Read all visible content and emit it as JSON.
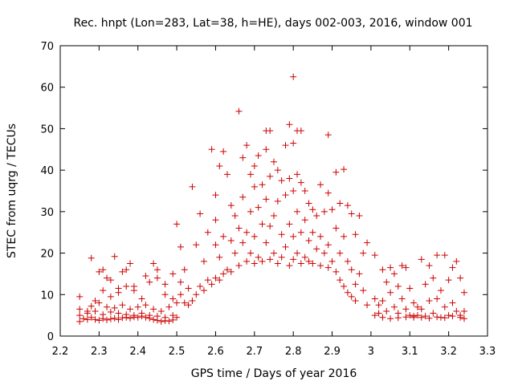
{
  "chart_data": {
    "type": "scatter",
    "title": "Rec. hnpt (Lon=283, Lat=38, h=HE), days 002-003, 2016, window 001",
    "xlabel": "GPS time / Days of year 2016",
    "ylabel": "STEC from uqrg / TECUs",
    "xlim": [
      2.2,
      3.3
    ],
    "ylim": [
      0,
      70
    ],
    "xticks": [
      "2.2",
      "2.3",
      "2.4",
      "2.5",
      "2.6",
      "2.7",
      "2.8",
      "2.9",
      "3",
      "3.1",
      "3.2",
      "3.3"
    ],
    "yticks": [
      "0",
      "10",
      "20",
      "30",
      "40",
      "50",
      "60",
      "70"
    ],
    "marker": "+",
    "color": "#cc0000",
    "grid": false,
    "series": [
      {
        "name": "STEC",
        "points": [
          [
            2.25,
            3.5
          ],
          [
            2.26,
            4.2
          ],
          [
            2.27,
            4.0
          ],
          [
            2.28,
            4.5
          ],
          [
            2.29,
            4.0
          ],
          [
            2.3,
            3.8
          ],
          [
            2.31,
            4.2
          ],
          [
            2.32,
            3.9
          ],
          [
            2.33,
            4.1
          ],
          [
            2.34,
            4.3
          ],
          [
            2.35,
            4.0
          ],
          [
            2.36,
            4.4
          ],
          [
            2.37,
            4.5
          ],
          [
            2.38,
            4.3
          ],
          [
            2.39,
            4.6
          ],
          [
            2.4,
            4.5
          ],
          [
            2.41,
            4.8
          ],
          [
            2.42,
            4.5
          ],
          [
            2.43,
            4.3
          ],
          [
            2.44,
            4.0
          ],
          [
            2.45,
            3.8
          ],
          [
            2.46,
            3.5
          ],
          [
            2.47,
            3.7
          ],
          [
            2.48,
            3.6
          ],
          [
            2.49,
            3.9
          ],
          [
            2.5,
            4.5
          ],
          [
            2.25,
            5.0
          ],
          [
            2.27,
            5.5
          ],
          [
            2.29,
            6.0
          ],
          [
            2.31,
            5.2
          ],
          [
            2.33,
            5.8
          ],
          [
            2.35,
            5.5
          ],
          [
            2.37,
            5.2
          ],
          [
            2.39,
            5.0
          ],
          [
            2.41,
            5.5
          ],
          [
            2.43,
            5.0
          ],
          [
            2.45,
            4.8
          ],
          [
            2.47,
            4.5
          ],
          [
            2.49,
            5.0
          ],
          [
            2.25,
            6.5
          ],
          [
            2.28,
            7.2
          ],
          [
            2.3,
            8.0
          ],
          [
            2.32,
            7.0
          ],
          [
            2.34,
            6.8
          ],
          [
            2.36,
            7.5
          ],
          [
            2.38,
            6.5
          ],
          [
            2.4,
            7.0
          ],
          [
            2.42,
            7.5
          ],
          [
            2.44,
            6.5
          ],
          [
            2.46,
            6.0
          ],
          [
            2.48,
            7.0
          ],
          [
            2.5,
            8.0
          ],
          [
            2.25,
            9.5
          ],
          [
            2.27,
            6.0
          ],
          [
            2.29,
            8.5
          ],
          [
            2.31,
            11.0
          ],
          [
            2.33,
            9.5
          ],
          [
            2.35,
            10.5
          ],
          [
            2.37,
            12.0
          ],
          [
            2.39,
            11.0
          ],
          [
            2.41,
            9.0
          ],
          [
            2.43,
            13.0
          ],
          [
            2.45,
            14.0
          ],
          [
            2.47,
            10.0
          ],
          [
            2.49,
            9.0
          ],
          [
            2.28,
            18.8
          ],
          [
            2.3,
            15.5
          ],
          [
            2.31,
            16.0
          ],
          [
            2.32,
            14.0
          ],
          [
            2.33,
            13.5
          ],
          [
            2.34,
            19.2
          ],
          [
            2.35,
            11.5
          ],
          [
            2.36,
            15.5
          ],
          [
            2.37,
            16.0
          ],
          [
            2.38,
            17.5
          ],
          [
            2.39,
            12.0
          ],
          [
            2.42,
            14.5
          ],
          [
            2.44,
            17.5
          ],
          [
            2.45,
            16.0
          ],
          [
            2.47,
            12.5
          ],
          [
            2.49,
            15.0
          ],
          [
            2.5,
            27.0
          ],
          [
            2.51,
            21.5
          ],
          [
            2.51,
            13.0
          ],
          [
            2.51,
            10.0
          ],
          [
            2.52,
            8.0
          ],
          [
            2.52,
            16.0
          ],
          [
            2.53,
            7.5
          ],
          [
            2.53,
            11.5
          ],
          [
            2.54,
            36.0
          ],
          [
            2.54,
            8.5
          ],
          [
            2.55,
            22.0
          ],
          [
            2.55,
            10.0
          ],
          [
            2.56,
            29.5
          ],
          [
            2.56,
            12.0
          ],
          [
            2.57,
            18.0
          ],
          [
            2.57,
            11.0
          ],
          [
            2.58,
            25.0
          ],
          [
            2.58,
            13.5
          ],
          [
            2.59,
            45.0
          ],
          [
            2.59,
            12.5
          ],
          [
            2.6,
            34.0
          ],
          [
            2.6,
            28.0
          ],
          [
            2.6,
            22.0
          ],
          [
            2.6,
            14.0
          ],
          [
            2.61,
            41.0
          ],
          [
            2.61,
            19.0
          ],
          [
            2.61,
            13.5
          ],
          [
            2.62,
            44.5
          ],
          [
            2.62,
            24.0
          ],
          [
            2.62,
            15.0
          ],
          [
            2.63,
            39.0
          ],
          [
            2.63,
            16.0
          ],
          [
            2.64,
            31.5
          ],
          [
            2.64,
            23.0
          ],
          [
            2.64,
            15.5
          ],
          [
            2.65,
            29.0
          ],
          [
            2.65,
            20.0
          ],
          [
            2.66,
            54.2
          ],
          [
            2.66,
            26.0
          ],
          [
            2.66,
            17.0
          ],
          [
            2.67,
            43.0
          ],
          [
            2.67,
            33.5
          ],
          [
            2.67,
            22.5
          ],
          [
            2.68,
            46.0
          ],
          [
            2.68,
            25.0
          ],
          [
            2.68,
            18.0
          ],
          [
            2.69,
            39.0
          ],
          [
            2.69,
            30.0
          ],
          [
            2.69,
            20.0
          ],
          [
            2.7,
            41.0
          ],
          [
            2.7,
            36.0
          ],
          [
            2.7,
            24.0
          ],
          [
            2.7,
            17.5
          ],
          [
            2.71,
            43.5
          ],
          [
            2.71,
            31.0
          ],
          [
            2.71,
            19.0
          ],
          [
            2.72,
            36.5
          ],
          [
            2.72,
            27.0
          ],
          [
            2.72,
            18.0
          ],
          [
            2.73,
            49.5
          ],
          [
            2.73,
            45.0
          ],
          [
            2.73,
            33.0
          ],
          [
            2.73,
            22.5
          ],
          [
            2.74,
            49.5
          ],
          [
            2.74,
            38.5
          ],
          [
            2.74,
            26.5
          ],
          [
            2.74,
            18.5
          ],
          [
            2.75,
            42.0
          ],
          [
            2.75,
            29.0
          ],
          [
            2.75,
            20.0
          ],
          [
            2.76,
            40.0
          ],
          [
            2.76,
            32.5
          ],
          [
            2.76,
            17.5
          ],
          [
            2.77,
            37.5
          ],
          [
            2.77,
            24.5
          ],
          [
            2.77,
            19.0
          ],
          [
            2.78,
            46.0
          ],
          [
            2.78,
            34.0
          ],
          [
            2.78,
            21.5
          ],
          [
            2.79,
            51.0
          ],
          [
            2.79,
            38.0
          ],
          [
            2.79,
            27.0
          ],
          [
            2.79,
            17.0
          ],
          [
            2.8,
            62.5
          ],
          [
            2.8,
            46.5
          ],
          [
            2.8,
            35.0
          ],
          [
            2.8,
            24.0
          ],
          [
            2.8,
            18.5
          ],
          [
            2.81,
            49.5
          ],
          [
            2.81,
            39.0
          ],
          [
            2.81,
            30.0
          ],
          [
            2.81,
            20.0
          ],
          [
            2.82,
            49.5
          ],
          [
            2.82,
            37.0
          ],
          [
            2.82,
            25.0
          ],
          [
            2.82,
            17.5
          ],
          [
            2.83,
            35.0
          ],
          [
            2.83,
            28.0
          ],
          [
            2.83,
            19.0
          ],
          [
            2.84,
            32.0
          ],
          [
            2.84,
            23.0
          ],
          [
            2.84,
            18.0
          ],
          [
            2.85,
            30.5
          ],
          [
            2.85,
            25.0
          ],
          [
            2.85,
            17.5
          ],
          [
            2.86,
            29.0
          ],
          [
            2.86,
            21.0
          ],
          [
            2.87,
            36.5
          ],
          [
            2.87,
            24.0
          ],
          [
            2.87,
            17.0
          ],
          [
            2.88,
            30.0
          ],
          [
            2.88,
            20.0
          ],
          [
            2.89,
            48.5
          ],
          [
            2.89,
            34.5
          ],
          [
            2.89,
            22.0
          ],
          [
            2.89,
            16.5
          ],
          [
            2.9,
            30.5
          ],
          [
            2.9,
            18.0
          ],
          [
            2.91,
            39.5
          ],
          [
            2.91,
            26.0
          ],
          [
            2.91,
            15.5
          ],
          [
            2.92,
            32.0
          ],
          [
            2.92,
            20.0
          ],
          [
            2.92,
            13.5
          ],
          [
            2.93,
            40.2
          ],
          [
            2.93,
            24.0
          ],
          [
            2.93,
            12.0
          ],
          [
            2.94,
            31.5
          ],
          [
            2.94,
            18.0
          ],
          [
            2.94,
            10.5
          ],
          [
            2.95,
            29.5
          ],
          [
            2.95,
            16.0
          ],
          [
            2.95,
            9.5
          ],
          [
            2.96,
            24.5
          ],
          [
            2.96,
            12.5
          ],
          [
            2.96,
            8.5
          ],
          [
            2.97,
            29.0
          ],
          [
            2.97,
            15.0
          ],
          [
            2.98,
            20.0
          ],
          [
            2.98,
            11.0
          ],
          [
            2.99,
            22.5
          ],
          [
            2.99,
            7.5
          ],
          [
            3.01,
            19.5
          ],
          [
            3.01,
            9.0
          ],
          [
            3.02,
            7.5
          ],
          [
            3.02,
            5.5
          ],
          [
            3.03,
            16.0
          ],
          [
            3.03,
            8.5
          ],
          [
            3.04,
            13.0
          ],
          [
            3.04,
            6.0
          ],
          [
            3.05,
            16.5
          ],
          [
            3.05,
            10.5
          ],
          [
            3.06,
            15.0
          ],
          [
            3.06,
            7.0
          ],
          [
            3.07,
            12.0
          ],
          [
            3.07,
            5.5
          ],
          [
            3.08,
            17.0
          ],
          [
            3.08,
            9.0
          ],
          [
            3.09,
            16.5
          ],
          [
            3.09,
            6.5
          ],
          [
            3.1,
            11.5
          ],
          [
            3.1,
            5.0
          ],
          [
            3.11,
            8.0
          ],
          [
            3.11,
            4.5
          ],
          [
            3.12,
            7.0
          ],
          [
            3.12,
            5.0
          ],
          [
            3.13,
            18.5
          ],
          [
            3.13,
            6.5
          ],
          [
            3.14,
            12.5
          ],
          [
            3.14,
            4.8
          ],
          [
            3.15,
            17.0
          ],
          [
            3.15,
            8.5
          ],
          [
            3.16,
            14.0
          ],
          [
            3.16,
            5.5
          ],
          [
            3.17,
            19.5
          ],
          [
            3.17,
            9.0
          ],
          [
            3.18,
            11.0
          ],
          [
            3.18,
            4.5
          ],
          [
            3.19,
            19.5
          ],
          [
            3.19,
            7.0
          ],
          [
            3.2,
            13.5
          ],
          [
            3.2,
            5.0
          ],
          [
            3.21,
            16.5
          ],
          [
            3.21,
            8.0
          ],
          [
            3.22,
            18.0
          ],
          [
            3.22,
            6.0
          ],
          [
            3.23,
            14.0
          ],
          [
            3.23,
            4.5
          ],
          [
            3.24,
            10.5
          ],
          [
            3.24,
            6.0
          ],
          [
            3.01,
            5.0
          ],
          [
            3.03,
            4.5
          ],
          [
            3.05,
            4.2
          ],
          [
            3.07,
            4.4
          ],
          [
            3.09,
            4.6
          ],
          [
            3.11,
            4.8
          ],
          [
            3.13,
            4.5
          ],
          [
            3.15,
            4.3
          ],
          [
            3.17,
            4.6
          ],
          [
            3.19,
            4.4
          ],
          [
            3.21,
            4.8
          ],
          [
            3.23,
            5.0
          ],
          [
            3.24,
            4.2
          ]
        ]
      }
    ]
  }
}
